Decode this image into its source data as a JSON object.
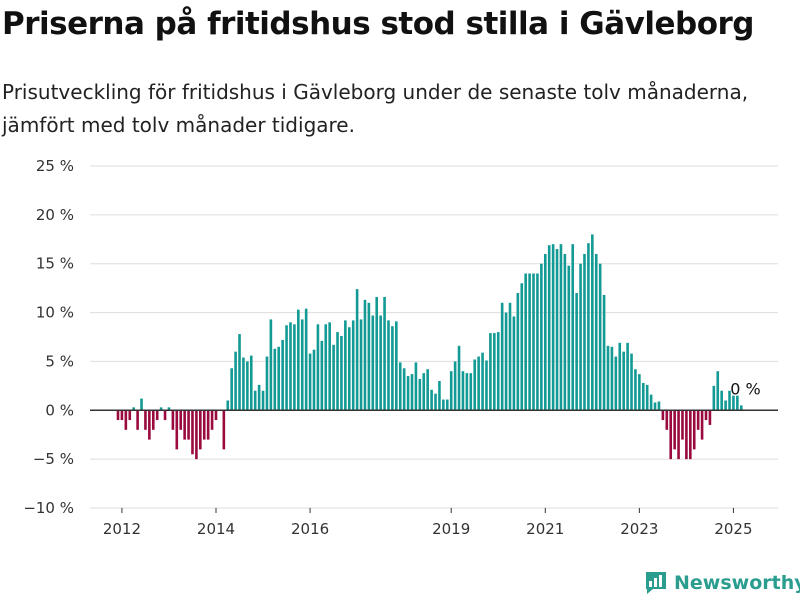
{
  "title": "Priserna på fritidshus stod stilla i Gävleborg",
  "subtitle": "Prisutveckling för fritidshus i Gävleborg under de senaste tolv månaderna, jämfört med tolv månader tidigare.",
  "brand": {
    "name": "Newsworthy",
    "color": "#2a9d8f"
  },
  "chart_data": {
    "type": "bar",
    "title": "Priserna på fritidshus stod stilla i Gävleborg",
    "subtitle": "Prisutveckling för fritidshus i Gävleborg under de senaste tolv månaderna, jämfört med tolv månader tidigare.",
    "xlabel": "",
    "ylabel": "",
    "ylim": [
      -10,
      25
    ],
    "yticks": [
      -10,
      -5,
      0,
      5,
      10,
      15,
      20,
      25
    ],
    "ytick_labels": [
      "−10 %",
      "−5 %",
      "0 %",
      "5 %",
      "10 %",
      "15 %",
      "20 %",
      "25 %"
    ],
    "xticks": [
      2012,
      2014,
      2016,
      2019,
      2021,
      2023,
      2025
    ],
    "xtick_labels": [
      "2012",
      "2014",
      "2016",
      "2019",
      "2021",
      "2023",
      "2025"
    ],
    "grid": true,
    "legend": "none",
    "colors": {
      "positive": "#139a94",
      "negative": "#9a0a3e",
      "zero_line": "#333333",
      "grid": "#dddddd"
    },
    "x_start": "2011-12",
    "frequency": "monthly",
    "values": [
      -1,
      -1,
      -2,
      -1,
      0.3,
      -2,
      1.2,
      -2,
      -3,
      -2,
      -1,
      0.3,
      -1,
      0.3,
      -2,
      -4,
      -2,
      -3,
      -3,
      -4.5,
      -5,
      -4,
      -3,
      -3,
      -2,
      -1,
      0,
      -4,
      1,
      4.3,
      6,
      7.8,
      5.4,
      5,
      5.6,
      2,
      2.6,
      2,
      5.5,
      9.3,
      6.3,
      6.5,
      7.2,
      8.7,
      9,
      8.8,
      10.3,
      9.3,
      10.4,
      5.8,
      6.2,
      8.8,
      7.1,
      8.8,
      9,
      6.7,
      8,
      7.6,
      9.2,
      8.5,
      9.2,
      12.4,
      9.3,
      11.3,
      11,
      9.7,
      11.6,
      9.7,
      11.6,
      9.2,
      8.6,
      9.1,
      4.9,
      4.3,
      3.5,
      3.7,
      4.9,
      3.2,
      3.8,
      4.2,
      2.1,
      1.7,
      3,
      1.1,
      1.1,
      4,
      5,
      6.6,
      4,
      3.8,
      3.8,
      5.2,
      5.5,
      5.9,
      5.1,
      7.9,
      7.9,
      8,
      11,
      10,
      11,
      9.6,
      12,
      13,
      14,
      14,
      14,
      14,
      15,
      16,
      16.9,
      17,
      16.5,
      17,
      16,
      14.8,
      17,
      12,
      15,
      16,
      17.1,
      18,
      16,
      15,
      11.8,
      6.6,
      6.5,
      5.5,
      6.9,
      6,
      6.9,
      5.8,
      4.2,
      3.7,
      2.8,
      2.6,
      1.6,
      0.8,
      0.9,
      -1,
      -2,
      -5,
      -4,
      -5,
      -3,
      -5,
      -5,
      -4,
      -2,
      -3,
      -1,
      -1.5,
      2.5,
      4,
      2,
      1,
      2,
      1.5,
      1.5,
      0.5
    ]
  },
  "annotation": {
    "text": "0 %",
    "value": 0
  }
}
